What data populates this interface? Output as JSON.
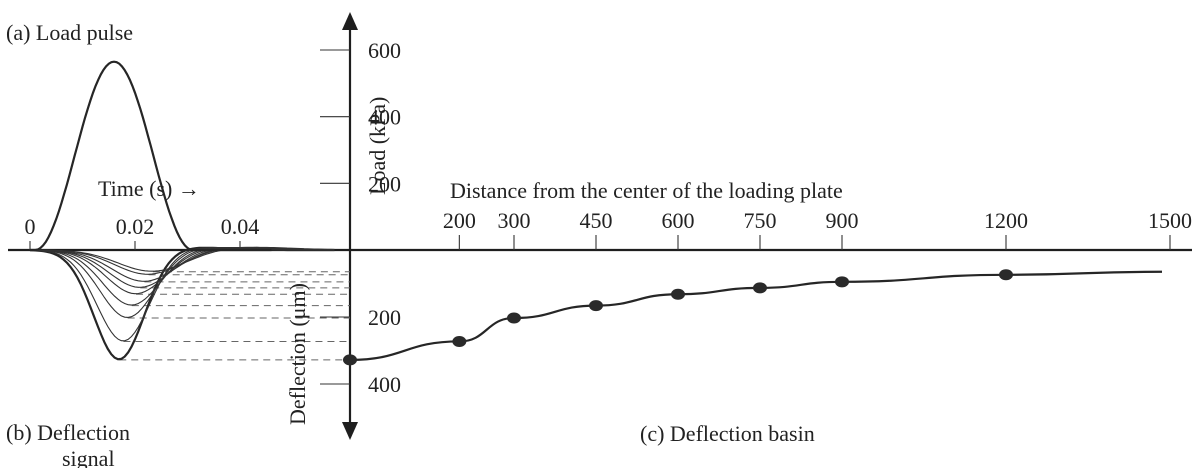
{
  "chart_data": {
    "type": "line",
    "labels": {
      "panel_a": "(a) Load pulse",
      "panel_b_line1": "(b) Deflection",
      "panel_b_line2": "signal",
      "panel_c": "(c) Deflection basin",
      "load_axis": "Load (kPa)",
      "deflection_axis": "Deflection (μm)",
      "time_axis": "Time (s) →",
      "distance_axis": "Distance from the center of the loading plate"
    },
    "load_axis": {
      "ticks": [
        200,
        400,
        600
      ],
      "range": [
        0,
        620
      ]
    },
    "deflection_axis": {
      "ticks": [
        200,
        400
      ],
      "range": [
        0,
        420
      ]
    },
    "time_axis": {
      "ticks": [
        "0",
        "0.02",
        "0.04"
      ],
      "range": [
        0,
        0.06
      ]
    },
    "distance_axis": {
      "ticks": [
        "200",
        "300",
        "450",
        "600",
        "750",
        "900",
        "1200",
        "1500"
      ],
      "range": [
        0,
        1500
      ]
    },
    "load_pulse": {
      "peak_time": 0.016,
      "peak_load": 565,
      "end_time": 0.031
    },
    "deflection_basin": {
      "distance": [
        0,
        200,
        300,
        450,
        600,
        750,
        900,
        1200
      ],
      "deflection": [
        328,
        273,
        203,
        166,
        132,
        113,
        95,
        74
      ],
      "end_point": {
        "distance": 1500,
        "deflection": 65
      }
    },
    "deflection_signal": {
      "peaks": [
        328,
        273,
        203,
        166,
        132,
        113,
        95,
        74,
        65
      ],
      "peak_times": [
        0.017,
        0.0178,
        0.0186,
        0.0194,
        0.0202,
        0.021,
        0.0218,
        0.0226,
        0.0234
      ]
    }
  }
}
